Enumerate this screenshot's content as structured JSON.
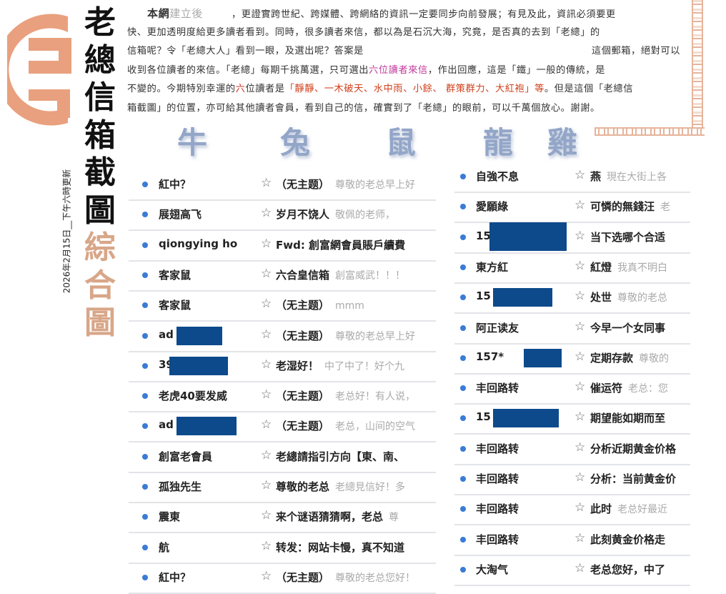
{
  "logo": {
    "text": "019",
    "color": "#e9a07e"
  },
  "title": {
    "dark": [
      "老",
      "總",
      "信",
      "箱",
      "截",
      "圖"
    ],
    "light": [
      "綜",
      "合",
      "圖"
    ]
  },
  "update_date": "2026年2月15日__下午六時更新",
  "intro": {
    "lead_dark": "本網",
    "lead_faint": "建立後",
    "lines": [
      [
        {
          "t": "，更證實跨世紀、跨媒體、跨網絡的資訊一定要同步向前發展；有見及此，資訊必須要更"
        }
      ],
      [
        {
          "t": "快、更加透明度給更多讀者看到。同時，很多讀者來信，都以為是石沉大海，究竟，是否真的去到「老總」的"
        }
      ],
      [
        {
          "t": "信箱呢？令「老總大人」看到一眼，及選出呢？答案是"
        }
      ],
      [
        {
          "t": "收到各位讀者的來信。「老總」每期千挑萬選，只可選出"
        },
        {
          "t": "六位讀者來信",
          "c": "#c03a9a"
        },
        {
          "t": "，作出回應，這是「鐵」一般的傳統，是"
        }
      ],
      [
        {
          "t": "不變的。今期特別幸運的"
        },
        {
          "t": "六",
          "c": "#d03020"
        },
        {
          "t": "位讀者是"
        },
        {
          "t": "「靜靜、一木破天、水中雨、小餘、 群策群力、大紅袍」等",
          "c": "#d2401c"
        },
        {
          "t": "。但是這個「老總信"
        }
      ],
      [
        {
          "t": "箱截圖」的位置，亦可給其他讀者會員，看到自己的信，確實到了「老總」的眼前，可以千萬個放心。謝謝。"
        }
      ]
    ],
    "line3_right": "這個郵箱，絕對可以"
  },
  "zodiac": [
    "牛",
    "兔",
    "鼠",
    "龍",
    "雞"
  ],
  "colors": {
    "redact": "#0d4a8c",
    "unread_dot": "#3a7bd5",
    "zodiac": "#93a6c8"
  },
  "left_list": [
    {
      "name": "紅中？",
      "subject": "（无主题）",
      "preview": "尊敬的老总早上好"
    },
    {
      "name": "展翅高飞",
      "subject": "岁月不饶人",
      "preview": "敬佩的老师，"
    },
    {
      "name": "qiongying ho",
      "subject": "Fwd: 創富網會員賬戶續費",
      "preview": ""
    },
    {
      "name": "客家鼠",
      "subject": "六合皇信箱",
      "preview": "創富威武！！！"
    },
    {
      "name": "客家鼠",
      "subject": "（无主题）",
      "preview": "mmm"
    },
    {
      "name": "ad",
      "subject": "（无主题）",
      "preview": "尊敬的老总早上好",
      "redacted": true
    },
    {
      "name": "39",
      "subject": "老湿好！",
      "preview": "中了中了！好个九",
      "redacted": true
    },
    {
      "name": "老虎40要发威",
      "subject": "（无主题）",
      "preview": "老总好！有人说，"
    },
    {
      "name": "ad",
      "subject": "（无主题）",
      "preview": "老总，山间的空气",
      "redacted": true
    },
    {
      "name": "創富老會員",
      "subject": "老總請指引方向【東、南、",
      "preview": ""
    },
    {
      "name": "孤独先生",
      "subject": "尊敬的老总",
      "preview": "老總見信好！多"
    },
    {
      "name": "震東",
      "subject": "来个谜语猜猜啊，老总",
      "preview": "尊"
    },
    {
      "name": "航",
      "subject": "转发：网站卡慢，真不知道",
      "preview": ""
    },
    {
      "name": "紅中？",
      "subject": "（无主题）",
      "preview": "尊敬的老总您好！"
    }
  ],
  "right_list": [
    {
      "name": "自強不息",
      "subject": "燕",
      "preview": "現在大街上各"
    },
    {
      "name": "愛願綠",
      "subject": "可憐的無錢汪",
      "preview": "老"
    },
    {
      "name": "15",
      "subject": "当下选哪个合适",
      "preview": "",
      "redacted": true
    },
    {
      "name": "東方紅",
      "subject": "紅燈",
      "preview": "我真不明白"
    },
    {
      "name": "15",
      "subject": "处世",
      "preview": "尊敬的老总",
      "redacted": true
    },
    {
      "name": "阿正读友",
      "subject": "今早一个女同事",
      "preview": ""
    },
    {
      "name": "157*",
      "subject": "定期存款",
      "preview": "尊敬的",
      "redacted": true
    },
    {
      "name": "丰回路转",
      "subject": "催运符",
      "preview": "老总：您"
    },
    {
      "name": "15",
      "subject": "期望能如期而至",
      "preview": "",
      "redacted": true
    },
    {
      "name": "丰回路转",
      "subject": "分析近期黄金价格",
      "preview": ""
    },
    {
      "name": "丰回路转",
      "subject": "分析：当前黄金价",
      "preview": ""
    },
    {
      "name": "丰回路转",
      "subject": "此时",
      "preview": "老总好最近"
    },
    {
      "name": "丰回路转",
      "subject": "此刻黄金价格走",
      "preview": ""
    },
    {
      "name": "大淘气",
      "subject": "老总您好，中了",
      "preview": ""
    }
  ]
}
